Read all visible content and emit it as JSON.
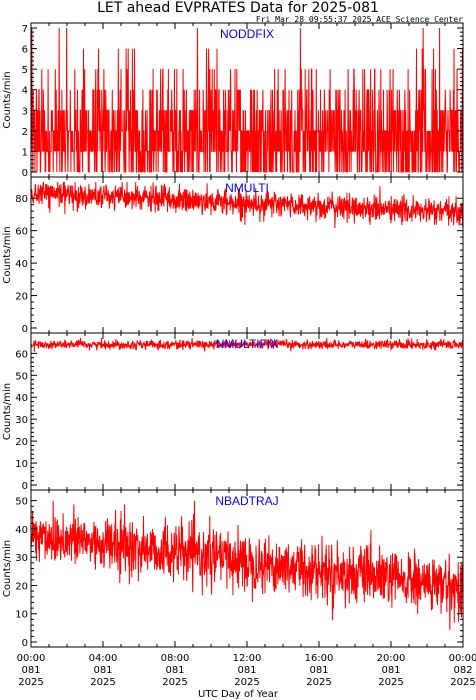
{
  "header": {
    "title": "LET ahead EVPRATES Data for 2025-081",
    "timestamp": "Fri Mar 28 09:55:37 2025 ACE Science Center"
  },
  "colors": {
    "series": "#ff0000",
    "panel_label": "#0000ff",
    "axes": "#000000"
  },
  "xaxis": {
    "label": "UTC Day of Year",
    "ticks": [
      {
        "time": "00:00",
        "doy": "081",
        "year": "2025"
      },
      {
        "time": "04:00",
        "doy": "081",
        "year": "2025"
      },
      {
        "time": "08:00",
        "doy": "081",
        "year": "2025"
      },
      {
        "time": "12:00",
        "doy": "081",
        "year": "2025"
      },
      {
        "time": "16:00",
        "doy": "081",
        "year": "2025"
      },
      {
        "time": "20:00",
        "doy": "081",
        "year": "2025"
      },
      {
        "time": "00:00",
        "doy": "082",
        "year": "2025"
      }
    ]
  },
  "chart_data": [
    {
      "type": "line",
      "label": "NODDFIX",
      "ylabel": "Counts/min",
      "ylim": [
        0,
        7
      ],
      "yticks": [
        0,
        1,
        2,
        3,
        4,
        5,
        6,
        7
      ],
      "x_range_hours": [
        0,
        24
      ],
      "samples_per_hour": 60,
      "profile": {
        "kind": "discrete",
        "levels": [
          0,
          1,
          2,
          3,
          4,
          5,
          6,
          7
        ],
        "probabilities": [
          0.2,
          0.26,
          0.25,
          0.16,
          0.07,
          0.04,
          0.015,
          0.005
        ]
      }
    },
    {
      "type": "line",
      "label": "NMULTI",
      "ylabel": "Counts/min",
      "ylim": [
        0,
        90
      ],
      "yticks": [
        0,
        20,
        40,
        60,
        80
      ],
      "x_range_hours": [
        0,
        24
      ],
      "samples_per_hour": 60,
      "profile": {
        "kind": "trend",
        "start": 83,
        "end": 71,
        "noise": 4
      }
    },
    {
      "type": "line",
      "label": "NMULTIFIX",
      "ylabel": "Counts/min",
      "ylim": [
        0,
        67
      ],
      "yticks": [
        0,
        10,
        20,
        30,
        40,
        50,
        60
      ],
      "x_range_hours": [
        0,
        24
      ],
      "samples_per_hour": 60,
      "profile": {
        "kind": "trend",
        "start": 64,
        "end": 64,
        "noise": 1
      }
    },
    {
      "type": "line",
      "label": "NBADTRAJ",
      "ylabel": "Counts/min",
      "ylim": [
        0,
        52
      ],
      "yticks": [
        0,
        10,
        20,
        30,
        40,
        50
      ],
      "x_range_hours": [
        0,
        24
      ],
      "samples_per_hour": 60,
      "profile": {
        "kind": "trend",
        "start": 38,
        "end": 19,
        "noise": 5
      }
    }
  ]
}
